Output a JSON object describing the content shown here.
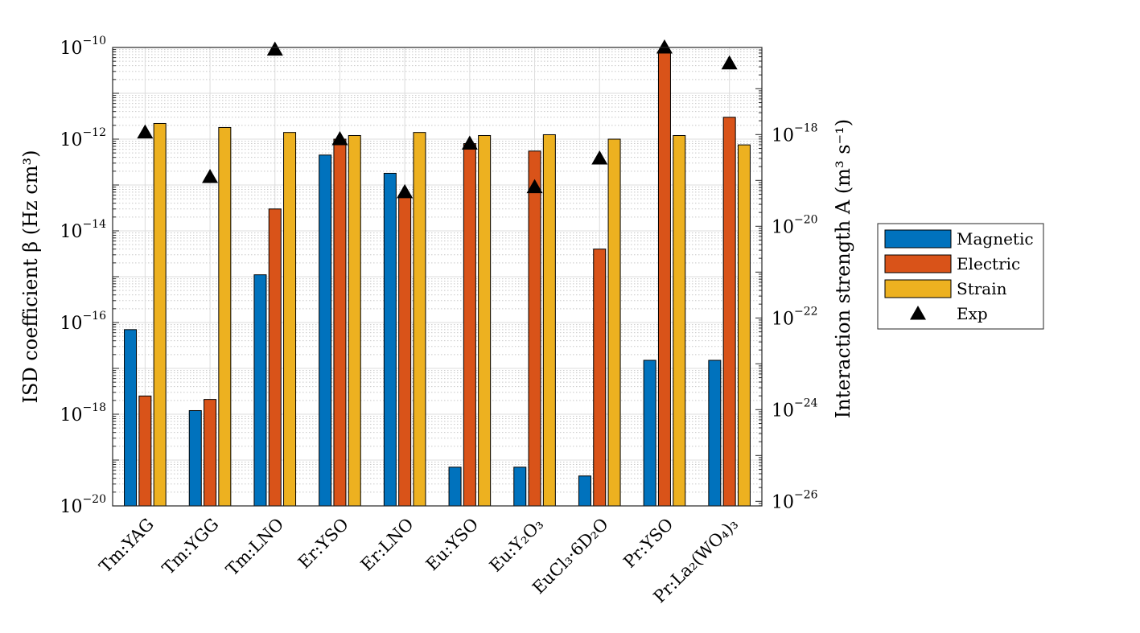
{
  "chart_data": {
    "type": "bar",
    "yscale": "log",
    "categories": [
      "Tm:YAG",
      "Tm:YGG",
      "Tm:LNO",
      "Er:YSO",
      "Er:LNO",
      "Eu:YSO",
      "Eu:Y₂O₃",
      "EuCl₃·6D₂O",
      "Pr:YSO",
      "Pr:La₂(WO₄)₃"
    ],
    "series": [
      {
        "name": "Magnetic",
        "color": "#0072BD",
        "values": [
          7e-17,
          1.2e-18,
          1.1e-15,
          4.5e-13,
          1.8e-13,
          7e-20,
          7e-20,
          4.5e-20,
          1.5e-17,
          1.5e-17
        ]
      },
      {
        "name": "Electric",
        "color": "#D95319",
        "values": [
          2.5e-18,
          2.1e-18,
          3e-14,
          1e-12,
          6e-14,
          8e-13,
          5.5e-13,
          4e-15,
          8e-11,
          3e-12
        ]
      },
      {
        "name": "Strain",
        "color": "#EDB120",
        "values": [
          2.2e-12,
          1.8e-12,
          1.4e-12,
          1.2e-12,
          1.4e-12,
          1.2e-12,
          1.25e-12,
          1e-12,
          1.2e-12,
          7.5e-13
        ]
      }
    ],
    "experiment": {
      "name": "Exp",
      "values": [
        1.4e-12,
        1.5e-13,
        9e-11,
        1e-12,
        7e-14,
        8e-13,
        9e-14,
        3.8e-13,
        1e-10,
        4.5e-11
      ]
    },
    "ylabel": "ISD coefficient β (Hz cm³)",
    "ylabel_right": "Interaction strength A (m³ s⁻¹)",
    "ylim": [
      1e-20,
      1e-10
    ],
    "y_ticks": [
      {
        "base": "10",
        "exp": "−20",
        "value": 1e-20
      },
      {
        "base": "10",
        "exp": "−18",
        "value": 1e-18
      },
      {
        "base": "10",
        "exp": "−16",
        "value": 1e-16
      },
      {
        "base": "10",
        "exp": "−14",
        "value": 1e-14
      },
      {
        "base": "10",
        "exp": "−12",
        "value": 1e-12
      },
      {
        "base": "10",
        "exp": "−10",
        "value": 1e-10
      }
    ],
    "y_right_ticks": [
      {
        "base": "10",
        "exp": "−26",
        "value": 1e-26
      },
      {
        "base": "10",
        "exp": "−24",
        "value": 1e-24
      },
      {
        "base": "10",
        "exp": "−22",
        "value": 1e-22
      },
      {
        "base": "10",
        "exp": "−20",
        "value": 1e-20
      },
      {
        "base": "10",
        "exp": "−18",
        "value": 1e-18
      }
    ],
    "right_axis_offset_decades": 6.1,
    "legend": {
      "position": "right",
      "entries": [
        "Magnetic",
        "Electric",
        "Strain",
        "Exp"
      ]
    },
    "grid": true
  }
}
